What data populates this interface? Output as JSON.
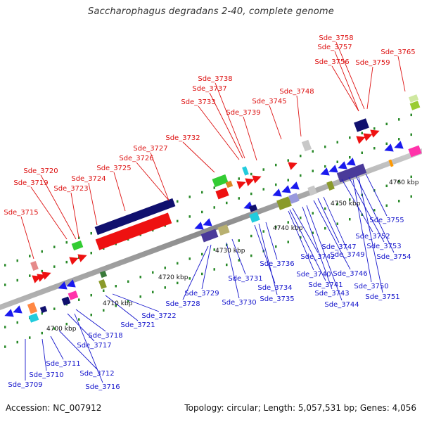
{
  "title": "Saccharophagus degradans 2-40, complete genome",
  "footer": {
    "accession": "Accession: NC_007912",
    "summary": "Topology: circular; Length: 5,057,531 bp; Genes: 4,056"
  },
  "colors": {
    "label_top": "#dd1111",
    "label_bottom": "#1515cc",
    "axis": "#999999",
    "tick": "#2a8a2a"
  },
  "kbp_labels": [
    "4700 kbp",
    "4710 kbp",
    "4720 kbp",
    "4730 kbp",
    "4740 kbp",
    "4750 kbp",
    "4760 kbp"
  ],
  "genes_top": [
    "Sde_3715",
    "Sde_3719",
    "Sde_3720",
    "Sde_3723",
    "Sde_3724",
    "Sde_3725",
    "Sde_3726",
    "Sde_3727",
    "Sde_3732",
    "Sde_3733",
    "Sde_3737",
    "Sde_3738",
    "Sde_3739",
    "Sde_3745",
    "Sde_3748",
    "Sde_3756",
    "Sde_3757",
    "Sde_3758",
    "Sde_3759",
    "Sde_3765"
  ],
  "genes_bottom": [
    "Sde_3709",
    "Sde_3710",
    "Sde_3711",
    "Sde_3712",
    "Sde_3716",
    "Sde_3717",
    "Sde_3718",
    "Sde_3721",
    "Sde_3722",
    "Sde_3728",
    "Sde_3729",
    "Sde_3730",
    "Sde_3731",
    "Sde_3734",
    "Sde_3735",
    "Sde_3736",
    "Sde_3740",
    "Sde_3741",
    "Sde_3742",
    "Sde_3743",
    "Sde_3744",
    "Sde_3746",
    "Sde_3747",
    "Sde_3749",
    "Sde_3750",
    "Sde_3751",
    "Sde_3752",
    "Sde_3753",
    "Sde_3754",
    "Sde_3755"
  ]
}
